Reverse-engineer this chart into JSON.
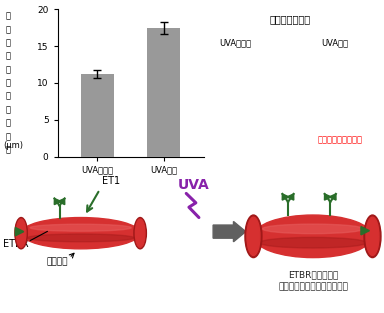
{
  "bar_values": [
    11.2,
    17.5
  ],
  "bar_errors": [
    0.5,
    0.8
  ],
  "bar_colors": [
    "#999999",
    "#999999"
  ],
  "bar_labels": [
    "UVA非照射",
    "UVA照射"
  ],
  "ylabel_chars": [
    "毛",
    "細",
    "血",
    "管",
    "モ",
    "デ",
    "ル",
    "の",
    "平",
    "均",
    "径"
  ],
  "yunits": "(μm)",
  "ylim": [
    0,
    20
  ],
  "yticks": [
    0,
    5,
    10,
    15,
    20
  ],
  "bar_width": 0.5,
  "title_right": "毛細血管モデル",
  "label_non": "UVA非照射",
  "label_irr": "UVA照射",
  "red_text": "毛細血管がより拡張",
  "et1_label": "ET1",
  "etbr_label": "ETBR",
  "vessel_label": "毛細血管",
  "result_label": "ETBRが増加し、\n毛細血管が拡張しやすくなる",
  "uva_label": "UVA",
  "green_color": "#2a6e2a",
  "vessel_red": "#d63030",
  "vessel_dark": "#a01818",
  "vessel_light": "#e86060",
  "arrow_gray": "#606060",
  "uva_purple": "#8822aa",
  "background": "#ffffff",
  "img_bg": "#3a3a3a"
}
